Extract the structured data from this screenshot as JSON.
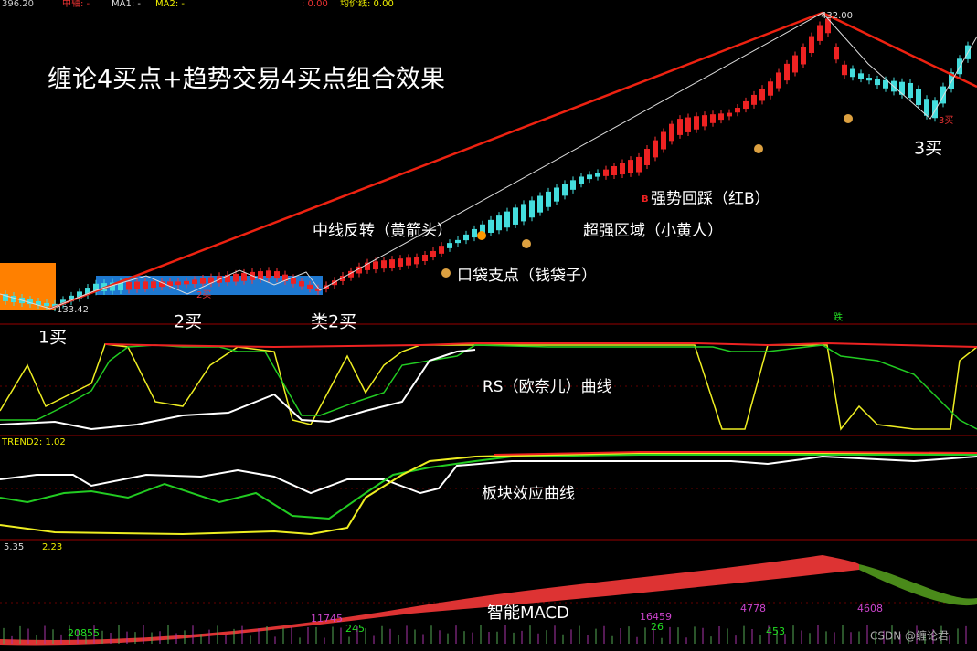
{
  "header": {
    "price": "396.20",
    "axis": "中轴: -",
    "ma1": "MA1: -",
    "ma2": "MA2: -",
    "change": ": 0.00",
    "avg": "均价线: 0.00"
  },
  "title": "缠论4买点+趋势交易4买点组合效果",
  "price_labels": {
    "low": "133.42",
    "high": "432.00"
  },
  "buy_points": [
    "1买",
    "2买",
    "类2买",
    "3买"
  ],
  "small_labels": [
    "2买",
    "3买",
    "跌"
  ],
  "annotations": [
    "中线反转（黄箭头）",
    "口袋支点（钱袋子）",
    "超强区域（小黄人）",
    "强势回踩（红B）"
  ],
  "panels": {
    "rs": "RS（欧奈儿）曲线",
    "sector": "板块效应曲线",
    "sector_header": "TREND2: 1.02",
    "macd": "智能MACD",
    "macd_header": [
      "5.35",
      "2.23"
    ]
  },
  "macd_labels": [
    "20855",
    "11745",
    "245",
    "16459",
    "26",
    "4778",
    "453",
    "4608"
  ],
  "watermark": "CSDN @缠论君"
}
